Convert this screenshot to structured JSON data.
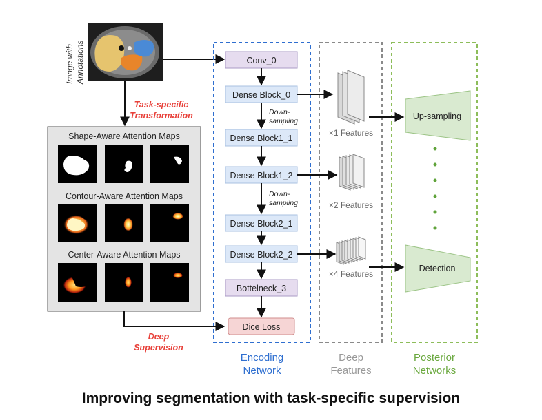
{
  "caption": "Improving segmentation with task-specific supervision",
  "input": {
    "label_line1": "Image with",
    "label_line2": "Annotations"
  },
  "transform": {
    "line1": "Task-specific",
    "line2": "Transformation"
  },
  "deep_supervision": {
    "line1": "Deep",
    "line2": "Supervision"
  },
  "attention_panel": {
    "groups": [
      {
        "title": "Shape-Aware Attention Maps"
      },
      {
        "title": "Contour-Aware Attention Maps"
      },
      {
        "title": "Center-Aware Attention Maps"
      }
    ]
  },
  "encoder": {
    "blocks": [
      "Conv_0",
      "Dense Block_0",
      "Dense Block1_1",
      "Dense Block1_2",
      "Dense Block2_1",
      "Dense Block2_2",
      "Bottelneck_3",
      "Dice Loss"
    ],
    "down_label_1": "Down-",
    "down_label_2": "sampling",
    "title_line1": "Encoding",
    "title_line2": "Network"
  },
  "deep_features": {
    "labels": [
      "×1 Features",
      "×2 Features",
      "×4 Features"
    ],
    "title_line1": "Deep",
    "title_line2": "Features"
  },
  "posterior": {
    "upsampling": "Up-sampling",
    "detection": "Detection",
    "title_line1": "Posterior",
    "title_line2": "Networks"
  },
  "colors": {
    "encoder_dash": "#2f6fd0",
    "features_dash": "#8a8a8a",
    "posterior_dash": "#8dbd5a",
    "accent_red": "#e8413a",
    "block_blue": "#dce8f8",
    "block_purple": "#e6dcef",
    "block_pink": "#f6d5d5",
    "trapezoid_green": "#d9ead0"
  }
}
